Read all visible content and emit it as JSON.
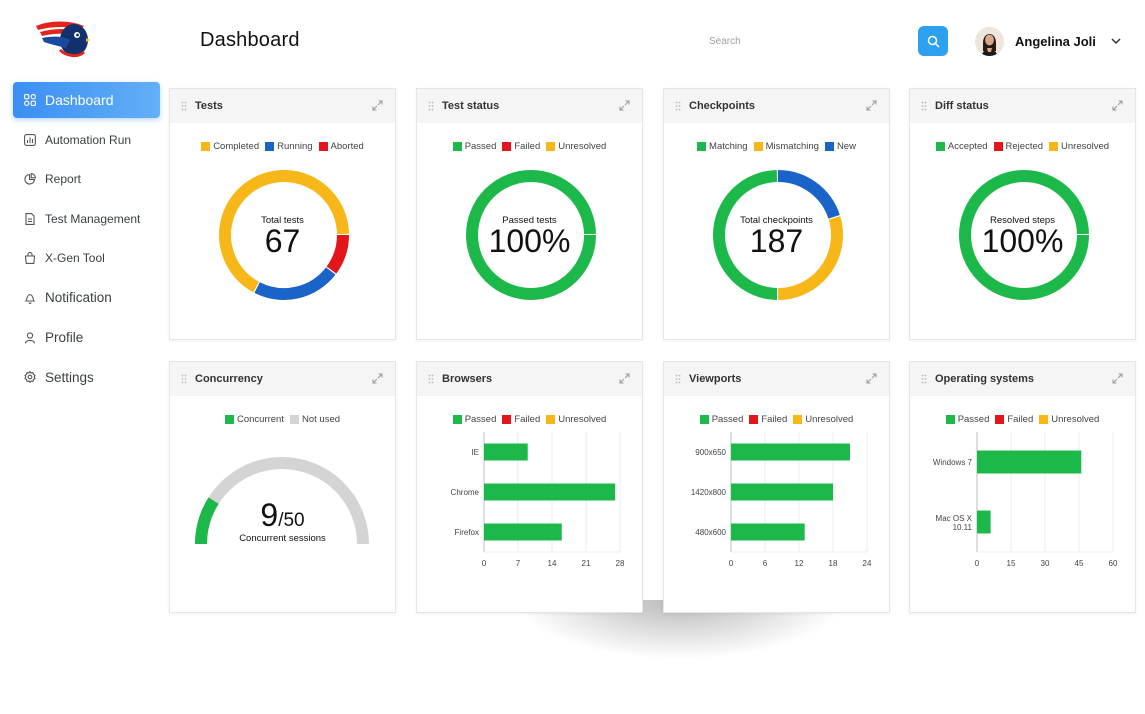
{
  "header": {
    "title": "Dashboard",
    "search_placeholder": "Search",
    "user_name": "Angelina Joli"
  },
  "icons": {
    "logo": "bird-logo-icon",
    "search": "search-icon",
    "user_menu": "chevron-down-icon",
    "expand": "expand-icon",
    "drag": "drag-handle-icon"
  },
  "sidebar": {
    "items": [
      {
        "label": "Dashboard",
        "icon": "grid-icon"
      },
      {
        "label": "Automation Run",
        "icon": "chart-icon"
      },
      {
        "label": "Report",
        "icon": "pie-icon"
      },
      {
        "label": "Test Management",
        "icon": "document-icon"
      },
      {
        "label": "X-Gen Tool",
        "icon": "bag-icon"
      },
      {
        "label": "Notification",
        "icon": "bell-icon"
      },
      {
        "label": "Profile",
        "icon": "user-icon"
      },
      {
        "label": "Settings",
        "icon": "gear-icon"
      }
    ]
  },
  "colors": {
    "passed": "#1db84a",
    "failed": "#e3161b",
    "unresolved": "#f7b718",
    "blue": "#1a63c9",
    "notused": "#d4d4d4",
    "accent": "#2ea0f0"
  },
  "chart_data": [
    {
      "type": "pie",
      "title": "Tests",
      "legend": [
        "Completed",
        "Running",
        "Aborted"
      ],
      "values": [
        45,
        15,
        7
      ],
      "center_label": "Total tests",
      "center_value": "67"
    },
    {
      "type": "pie",
      "title": "Test status",
      "legend": [
        "Passed",
        "Failed",
        "Unresolved"
      ],
      "values": [
        100,
        0,
        0
      ],
      "center_label": "Passed tests",
      "center_value": "100%"
    },
    {
      "type": "pie",
      "title": "Checkpoints",
      "legend": [
        "Matching",
        "Mismatching",
        "New"
      ],
      "values": [
        93,
        56,
        38
      ],
      "center_label": "Total checkpoints",
      "center_value": "187"
    },
    {
      "type": "pie",
      "title": "Diff status",
      "legend": [
        "Accepted",
        "Rejected",
        "Unresolved"
      ],
      "values": [
        100,
        0,
        0
      ],
      "center_label": "Resolved steps",
      "center_value": "100%"
    },
    {
      "type": "gauge",
      "title": "Concurrency",
      "legend": [
        "Concurrent",
        "Not used"
      ],
      "value": 9,
      "max": 50,
      "value_label": "9",
      "max_label": "/50",
      "caption": "Concurrent sessions"
    },
    {
      "type": "bar",
      "title": "Browsers",
      "legend": [
        "Passed",
        "Failed",
        "Unresolved"
      ],
      "categories": [
        "IE",
        "Chrome",
        "Firefox"
      ],
      "values": [
        9,
        27,
        16
      ],
      "xlim": [
        0,
        28
      ],
      "xticks": [
        "0",
        "7",
        "14",
        "21",
        "28"
      ]
    },
    {
      "type": "bar",
      "title": "Viewports",
      "legend": [
        "Passed",
        "Failed",
        "Unresolved"
      ],
      "categories": [
        "900x650",
        "1420x800",
        "480x600"
      ],
      "values": [
        21,
        18,
        13
      ],
      "xlim": [
        0,
        24
      ],
      "xticks": [
        "0",
        "6",
        "12",
        "18",
        "24"
      ]
    },
    {
      "type": "bar",
      "title": "Operating systems",
      "legend": [
        "Passed",
        "Failed",
        "Unresolved"
      ],
      "categories": [
        "Windows 7",
        "Mac OS X 10.11"
      ],
      "values": [
        46,
        6
      ],
      "xlim": [
        0,
        60
      ],
      "xticks": [
        "0",
        "15",
        "30",
        "45",
        "60"
      ]
    }
  ]
}
